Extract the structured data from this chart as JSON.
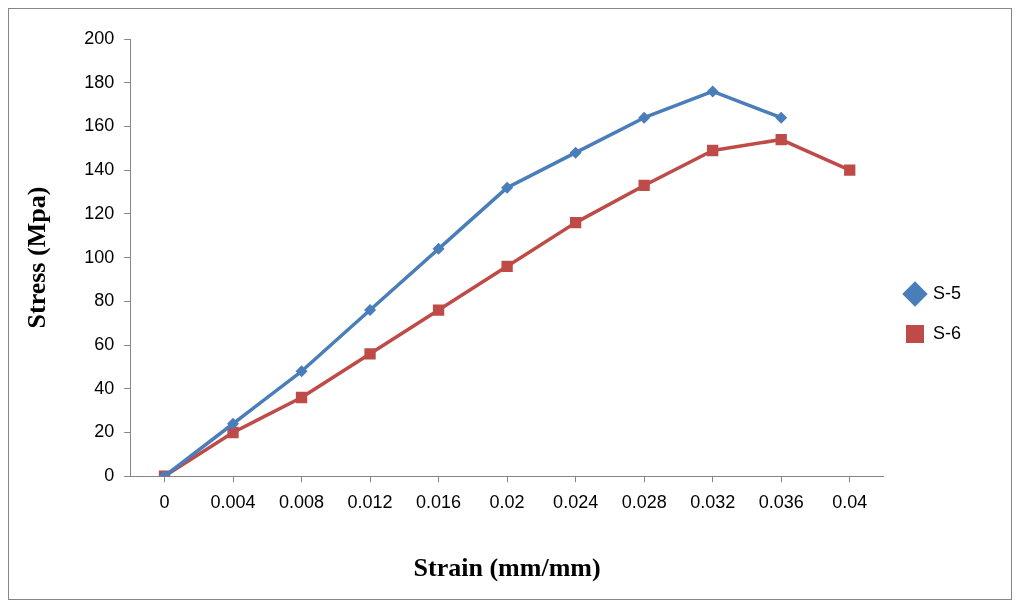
{
  "chart_data": {
    "type": "line",
    "xlabel": "Strain (mm/mm)",
    "ylabel": "Stress (Mpa)",
    "categories": [
      "0",
      "0.004",
      "0.008",
      "0.012",
      "0.016",
      "0.02",
      "0.024",
      "0.028",
      "0.032",
      "0.036",
      "0.04"
    ],
    "series": [
      {
        "name": "S-5",
        "color": "#4a7ebb",
        "marker": "diamond",
        "values": [
          0,
          24,
          48,
          76,
          104,
          132,
          148,
          164,
          176,
          164,
          null
        ]
      },
      {
        "name": "S-6",
        "color": "#be4b48",
        "marker": "square",
        "values": [
          0,
          20,
          36,
          56,
          76,
          96,
          116,
          133,
          149,
          154,
          140
        ]
      }
    ],
    "ylim": [
      0,
      200
    ],
    "yticks": [
      0,
      20,
      40,
      60,
      80,
      100,
      120,
      140,
      160,
      180,
      200
    ],
    "grid": false,
    "legend": "right",
    "line_style": "solid"
  }
}
